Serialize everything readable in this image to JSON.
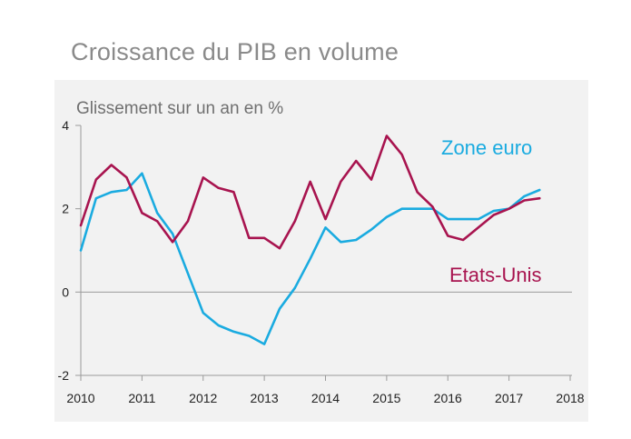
{
  "title": "Croissance du PIB en volume",
  "colors": {
    "zone_euro": "#1aabe0",
    "etats_unis": "#a8144f",
    "axis": "#9a9a9a",
    "panel_bg": "#f2f2f2"
  },
  "chart_data": {
    "type": "line",
    "title": "Croissance du PIB en volume",
    "subtitle": "Glissement sur un an en %",
    "xlabel": "",
    "ylabel": "",
    "xlim": [
      2010,
      2018
    ],
    "ylim": [
      -2,
      4
    ],
    "x_ticks": [
      "2010",
      "2011",
      "2012",
      "2013",
      "2014",
      "2015",
      "2016",
      "2017",
      "2018"
    ],
    "y_ticks": [
      "-2",
      "0",
      "2",
      "4"
    ],
    "grid": false,
    "series": [
      {
        "name": "Zone euro",
        "color": "#1aabe0",
        "x": [
          2010.0,
          2010.25,
          2010.5,
          2010.75,
          2011.0,
          2011.25,
          2011.5,
          2011.75,
          2012.0,
          2012.25,
          2012.5,
          2012.75,
          2013.0,
          2013.25,
          2013.5,
          2013.75,
          2014.0,
          2014.25,
          2014.5,
          2014.75,
          2015.0,
          2015.25,
          2015.5,
          2015.75,
          2016.0,
          2016.25,
          2016.5,
          2016.75,
          2017.0,
          2017.25,
          2017.5
        ],
        "y": [
          1.0,
          2.25,
          2.4,
          2.45,
          2.85,
          1.9,
          1.4,
          0.45,
          -0.5,
          -0.8,
          -0.95,
          -1.05,
          -1.25,
          -0.4,
          0.1,
          0.8,
          1.55,
          1.2,
          1.25,
          1.5,
          1.8,
          2.0,
          2.0,
          2.0,
          1.75,
          1.75,
          1.75,
          1.95,
          2.0,
          2.3,
          2.45
        ]
      },
      {
        "name": "Etats-Unis",
        "color": "#a8144f",
        "x": [
          2010.0,
          2010.25,
          2010.5,
          2010.75,
          2011.0,
          2011.25,
          2011.5,
          2011.75,
          2012.0,
          2012.25,
          2012.5,
          2012.75,
          2013.0,
          2013.25,
          2013.5,
          2013.75,
          2014.0,
          2014.25,
          2014.5,
          2014.75,
          2015.0,
          2015.25,
          2015.5,
          2015.75,
          2016.0,
          2016.25,
          2016.5,
          2016.75,
          2017.0,
          2017.25,
          2017.5
        ],
        "y": [
          1.6,
          2.7,
          3.05,
          2.75,
          1.9,
          1.7,
          1.2,
          1.7,
          2.75,
          2.5,
          2.4,
          1.3,
          1.3,
          1.05,
          1.7,
          2.65,
          1.75,
          2.65,
          3.15,
          2.7,
          3.75,
          3.3,
          2.4,
          2.05,
          1.35,
          1.25,
          1.55,
          1.85,
          2.0,
          2.2,
          2.25
        ]
      }
    ],
    "legend": [
      {
        "name": "Zone euro",
        "placement": "top-right",
        "color": "#1aabe0"
      },
      {
        "name": "Etats-Unis",
        "placement": "middle-right",
        "color": "#a8144f"
      }
    ]
  }
}
